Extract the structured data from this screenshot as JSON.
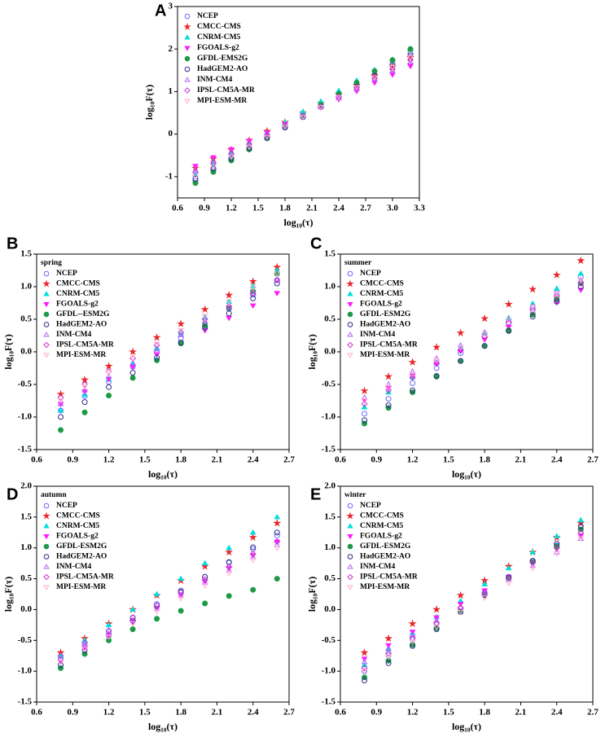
{
  "chart_data": [
    {
      "type": "scatter",
      "label": "A",
      "x_label": "log₁₀(τ)",
      "y_label": "log₁₀F(τ)",
      "x": [
        0.8,
        1.0,
        1.2,
        1.4,
        1.6,
        1.8,
        2.0,
        2.2,
        2.4,
        2.6,
        2.8,
        3.0,
        3.2
      ],
      "xlim": [
        0.6,
        3.3
      ],
      "xticks": [
        0.6,
        0.9,
        1.2,
        1.5,
        1.8,
        2.1,
        2.4,
        2.7,
        {
          "value": 3,
          "label": "3.0"
        },
        3.3
      ],
      "ylim": [
        -1.5,
        3
      ],
      "yticks": [
        -1,
        0,
        1,
        2,
        3
      ],
      "series": [
        {
          "name": "NCEP",
          "color": "#6b6bff",
          "marker": "circle-open",
          "values": [
            -1.1,
            -0.85,
            -0.6,
            -0.35,
            -0.1,
            0.15,
            0.4,
            0.65,
            0.9,
            1.15,
            1.4,
            1.65,
            1.9
          ]
        },
        {
          "name": "CMCC-CMS",
          "color": "#e8262a",
          "marker": "star",
          "values": [
            -0.8,
            -0.58,
            -0.37,
            -0.15,
            0.07,
            0.28,
            0.5,
            0.72,
            0.93,
            1.15,
            1.37,
            1.58,
            1.8
          ]
        },
        {
          "name": "CNRM-CM5",
          "color": "#00dede",
          "marker": "triangle",
          "values": [
            -0.95,
            -0.7,
            -0.46,
            -0.21,
            0.03,
            0.28,
            0.53,
            0.77,
            1.02,
            1.26,
            1.51,
            1.75,
            2.0
          ]
        },
        {
          "name": "FGOALS-g2",
          "color": "#ff1aff",
          "marker": "triangle-down",
          "values": [
            -0.75,
            -0.55,
            -0.36,
            -0.16,
            0.03,
            0.23,
            0.43,
            0.62,
            0.82,
            1.01,
            1.21,
            1.4,
            1.6
          ]
        },
        {
          "name": "GFDL-EMS2G",
          "color": "#1e9a46",
          "marker": "circle",
          "values": [
            -1.15,
            -0.89,
            -0.62,
            -0.36,
            -0.1,
            0.16,
            0.43,
            0.69,
            0.95,
            1.21,
            1.48,
            1.74,
            2.0
          ]
        },
        {
          "name": "HadGEM2-AO",
          "color": "#2c2c8c",
          "marker": "circle-open",
          "values": [
            -1.05,
            -0.81,
            -0.57,
            -0.33,
            -0.08,
            0.16,
            0.4,
            0.64,
            0.88,
            1.12,
            1.37,
            1.61,
            1.85
          ]
        },
        {
          "name": "INM-CM4",
          "color": "#b060ff",
          "marker": "triangle-open",
          "values": [
            -0.85,
            -0.64,
            -0.43,
            -0.21,
            0,
            0.21,
            0.43,
            0.64,
            0.85,
            1.06,
            1.28,
            1.49,
            1.7
          ]
        },
        {
          "name": "IPSL-CM5A-MR",
          "color": "#cc33cc",
          "marker": "diamond-open",
          "values": [
            -0.9,
            -0.68,
            -0.46,
            -0.24,
            -0.02,
            0.2,
            0.43,
            0.65,
            0.87,
            1.09,
            1.31,
            1.53,
            1.75
          ]
        },
        {
          "name": "MPI-ESM-MR",
          "color": "#ffadd0",
          "marker": "triangle-down-open",
          "values": [
            -1.0,
            -0.77,
            -0.53,
            -0.3,
            -0.07,
            0.17,
            0.4,
            0.63,
            0.87,
            1.1,
            1.33,
            1.57,
            1.8
          ]
        }
      ]
    },
    {
      "type": "scatter",
      "label": "B",
      "subtitle": "spring",
      "x_label": "log₁₀(τ)",
      "y_label": "log₁₀F(τ)",
      "x": [
        0.8,
        1.0,
        1.2,
        1.4,
        1.6,
        1.8,
        2.0,
        2.2,
        2.4,
        2.6
      ],
      "xlim": [
        0.6,
        2.7
      ],
      "xticks": [
        0.6,
        0.9,
        1.2,
        1.5,
        1.8,
        2.1,
        2.4,
        2.7
      ],
      "ylim": [
        -1.5,
        1.5
      ],
      "yticks": [
        -1.5,
        {
          "value": -1,
          "label": "-1.0"
        },
        -0.5,
        {
          "value": 0,
          "label": "0.0"
        },
        0.5,
        {
          "value": 1,
          "label": "1.0"
        },
        1.5
      ],
      "series": [
        {
          "name": "NCEP",
          "color": "#6b6bff",
          "marker": "circle-open",
          "values": [
            -0.9,
            -0.68,
            -0.46,
            -0.23,
            -0.01,
            0.21,
            0.43,
            0.66,
            0.88,
            1.1
          ]
        },
        {
          "name": "CMCC-CMS",
          "color": "#e8262a",
          "marker": "star",
          "values": [
            -0.65,
            -0.43,
            -0.22,
            0,
            0.22,
            0.43,
            0.65,
            0.87,
            1.08,
            1.3
          ]
        },
        {
          "name": "CNRM-CM5",
          "color": "#00dede",
          "marker": "triangle",
          "values": [
            -0.9,
            -0.66,
            -0.42,
            -0.18,
            0.06,
            0.29,
            0.53,
            0.77,
            1.01,
            1.25
          ]
        },
        {
          "name": "FGOALS-g2",
          "color": "#ff1aff",
          "marker": "triangle-down",
          "values": [
            -0.8,
            -0.61,
            -0.42,
            -0.23,
            -0.04,
            0.14,
            0.33,
            0.52,
            0.71,
            0.9
          ]
        },
        {
          "name": "GFDL--ESM2G",
          "color": "#1e9a46",
          "marker": "circle",
          "values": [
            -1.2,
            -0.93,
            -0.67,
            -0.4,
            -0.13,
            0.13,
            0.4,
            0.67,
            0.93,
            1.2
          ]
        },
        {
          "name": "HadGEM2-AO",
          "color": "#2c2c8c",
          "marker": "circle-open",
          "values": [
            -1.0,
            -0.77,
            -0.54,
            -0.32,
            -0.09,
            0.14,
            0.37,
            0.59,
            0.82,
            1.05
          ]
        },
        {
          "name": "INM-CM4",
          "color": "#b060ff",
          "marker": "triangle-open",
          "values": [
            -0.8,
            -0.59,
            -0.38,
            -0.17,
            0.04,
            0.26,
            0.47,
            0.68,
            0.89,
            1.1
          ]
        },
        {
          "name": "IPSL-CM5A-MR",
          "color": "#cc33cc",
          "marker": "diamond-open",
          "values": [
            -0.7,
            -0.5,
            -0.3,
            -0.1,
            0.1,
            0.3,
            0.5,
            0.7,
            0.9,
            1.1
          ]
        },
        {
          "name": "MPI-ESM-MR",
          "color": "#ffadd0",
          "marker": "triangle-down-open",
          "values": [
            -0.75,
            -0.53,
            -0.32,
            -0.1,
            0.12,
            0.33,
            0.55,
            0.77,
            0.98,
            1.2
          ]
        }
      ]
    },
    {
      "type": "scatter",
      "label": "C",
      "subtitle": "summer",
      "x_label": "log₁₀(τ)",
      "y_label": "log₁₀F(τ)",
      "x": [
        0.8,
        1.0,
        1.2,
        1.4,
        1.6,
        1.8,
        2.0,
        2.2,
        2.4,
        2.6
      ],
      "xlim": [
        0.6,
        2.7
      ],
      "xticks": [
        0.6,
        0.9,
        1.2,
        1.5,
        1.8,
        2.1,
        2.4,
        2.7
      ],
      "ylim": [
        -1.5,
        1.5
      ],
      "yticks": [
        -1.5,
        {
          "value": -1,
          "label": "-1.0"
        },
        -0.5,
        {
          "value": 0,
          "label": "0.0"
        },
        0.5,
        {
          "value": 1,
          "label": "1.0"
        },
        1.5
      ],
      "series": [
        {
          "name": "NCEP",
          "color": "#6b6bff",
          "marker": "circle-open",
          "values": [
            -0.95,
            -0.72,
            -0.48,
            -0.25,
            -0.02,
            0.22,
            0.45,
            0.68,
            0.92,
            1.15
          ]
        },
        {
          "name": "CMCC-CMS",
          "color": "#e8262a",
          "marker": "star",
          "values": [
            -0.6,
            -0.38,
            -0.16,
            0.07,
            0.29,
            0.51,
            0.73,
            0.96,
            1.18,
            1.4
          ]
        },
        {
          "name": "CNRM-CM5",
          "color": "#00dede",
          "marker": "triangle",
          "values": [
            -0.85,
            -0.62,
            -0.39,
            -0.17,
            0.06,
            0.29,
            0.52,
            0.74,
            0.97,
            1.2
          ]
        },
        {
          "name": "FGOALS-g2",
          "color": "#ff1aff",
          "marker": "triangle-down",
          "values": [
            -0.75,
            -0.56,
            -0.37,
            -0.18,
            0.01,
            0.19,
            0.38,
            0.57,
            0.76,
            0.95
          ]
        },
        {
          "name": "GFDL-ESM2G",
          "color": "#1e9a46",
          "marker": "circle",
          "values": [
            -1.1,
            -0.86,
            -0.62,
            -0.38,
            -0.14,
            0.09,
            0.33,
            0.57,
            0.81,
            1.05
          ]
        },
        {
          "name": "HadGEM2-AO",
          "color": "#2c2c8c",
          "marker": "circle-open",
          "values": [
            -1.05,
            -0.82,
            -0.59,
            -0.37,
            -0.14,
            0.09,
            0.32,
            0.54,
            0.77,
            1.0
          ]
        },
        {
          "name": "INM-CM4",
          "color": "#b060ff",
          "marker": "triangle-open",
          "values": [
            -0.7,
            -0.5,
            -0.3,
            -0.1,
            0.1,
            0.3,
            0.5,
            0.7,
            0.9,
            1.1
          ]
        },
        {
          "name": "IPSL-CM5A-MR",
          "color": "#cc33cc",
          "marker": "diamond-open",
          "values": [
            -0.8,
            -0.59,
            -0.39,
            -0.18,
            0.02,
            0.23,
            0.44,
            0.64,
            0.85,
            1.05
          ]
        },
        {
          "name": "MPI-ESM-MR",
          "color": "#ffadd0",
          "marker": "triangle-down-open",
          "values": [
            -0.75,
            -0.54,
            -0.34,
            -0.13,
            0.07,
            0.28,
            0.49,
            0.69,
            0.9,
            1.1
          ]
        }
      ]
    },
    {
      "type": "scatter",
      "label": "D",
      "subtitle": "autumn",
      "x_label": "log₁₀(τ)",
      "y_label": "log₁₀F(τ)",
      "x": [
        0.8,
        1.0,
        1.2,
        1.4,
        1.6,
        1.8,
        2.0,
        2.2,
        2.4,
        2.6
      ],
      "xlim": [
        0.6,
        2.7
      ],
      "xticks": [
        0.6,
        0.9,
        1.2,
        1.5,
        1.8,
        2.1,
        2.4,
        2.7
      ],
      "ylim": [
        -1.5,
        2
      ],
      "yticks": [
        -1.5,
        {
          "value": -1,
          "label": "-1.0"
        },
        -0.5,
        {
          "value": 0,
          "label": "0.0"
        },
        0.5,
        {
          "value": 1,
          "label": "1.0"
        },
        1.5,
        {
          "value": 2,
          "label": "2.0"
        }
      ],
      "series": [
        {
          "name": "NCEP",
          "color": "#6b6bff",
          "marker": "circle-open",
          "values": [
            -0.8,
            -0.58,
            -0.36,
            -0.13,
            0.09,
            0.31,
            0.53,
            0.76,
            0.98,
            1.2
          ]
        },
        {
          "name": "CMCC-CMS",
          "color": "#e8262a",
          "marker": "star",
          "values": [
            -0.7,
            -0.47,
            -0.23,
            0,
            0.23,
            0.47,
            0.7,
            0.93,
            1.17,
            1.4
          ]
        },
        {
          "name": "CNRM-CM5",
          "color": "#00dede",
          "marker": "triangle",
          "values": [
            -0.75,
            -0.5,
            -0.25,
            0,
            0.25,
            0.5,
            0.75,
            1.0,
            1.25,
            1.5
          ]
        },
        {
          "name": "FGOALS-g2",
          "color": "#ff1aff",
          "marker": "triangle-down",
          "values": [
            -0.85,
            -0.63,
            -0.42,
            -0.2,
            0.02,
            0.23,
            0.45,
            0.67,
            0.88,
            1.1
          ]
        },
        {
          "name": "GFDL-ESM2G",
          "color": "#1e9a46",
          "marker": "circle",
          "values": [
            -0.95,
            -0.72,
            -0.5,
            -0.32,
            -0.15,
            -0.02,
            0.1,
            0.22,
            0.32,
            0.5
          ]
        },
        {
          "name": "HadGEM2-AO",
          "color": "#2c2c8c",
          "marker": "circle-open",
          "values": [
            -0.9,
            -0.66,
            -0.42,
            -0.18,
            0.06,
            0.29,
            0.53,
            0.77,
            1.01,
            1.25
          ]
        },
        {
          "name": "INM-CM4",
          "color": "#b060ff",
          "marker": "triangle-open",
          "values": [
            -0.8,
            -0.59,
            -0.39,
            -0.18,
            0.02,
            0.23,
            0.44,
            0.64,
            0.85,
            1.05
          ]
        },
        {
          "name": "IPSL-CM5A-MR",
          "color": "#cc33cc",
          "marker": "diamond-open",
          "values": [
            -0.75,
            -0.54,
            -0.34,
            -0.13,
            0.07,
            0.28,
            0.49,
            0.69,
            0.9,
            1.1
          ]
        },
        {
          "name": "MPI-ESM-MR",
          "color": "#ffadd0",
          "marker": "triangle-down-open",
          "values": [
            -0.85,
            -0.64,
            -0.44,
            -0.23,
            -0.03,
            0.18,
            0.39,
            0.59,
            0.8,
            1.0
          ]
        }
      ]
    },
    {
      "type": "scatter",
      "label": "E",
      "subtitle": "winter",
      "x_label": "log₁₀(τ)",
      "y_label": "log₁₀F(τ)",
      "x": [
        0.8,
        1.0,
        1.2,
        1.4,
        1.6,
        1.8,
        2.0,
        2.2,
        2.4,
        2.6
      ],
      "xlim": [
        0.6,
        2.7
      ],
      "xticks": [
        0.6,
        0.9,
        1.2,
        1.5,
        1.8,
        2.1,
        2.4,
        2.7
      ],
      "ylim": [
        -1.5,
        2
      ],
      "yticks": [
        -1.5,
        {
          "value": -1,
          "label": "-1.0"
        },
        -0.5,
        {
          "value": 0,
          "label": "0.0"
        },
        0.5,
        {
          "value": 1,
          "label": "1.0"
        },
        1.5,
        {
          "value": 2,
          "label": "2.0"
        }
      ],
      "series": [
        {
          "name": "NCEP",
          "color": "#6b6bff",
          "marker": "circle-open",
          "values": [
            -1.0,
            -0.74,
            -0.49,
            -0.23,
            0.02,
            0.28,
            0.53,
            0.79,
            1.04,
            1.3
          ]
        },
        {
          "name": "CMCC-CMS",
          "color": "#e8262a",
          "marker": "star",
          "values": [
            -0.7,
            -0.47,
            -0.23,
            0,
            0.23,
            0.47,
            0.7,
            0.93,
            1.17,
            1.4
          ]
        },
        {
          "name": "CNRM-CM5",
          "color": "#00dede",
          "marker": "triangle",
          "values": [
            -0.9,
            -0.64,
            -0.38,
            -0.12,
            0.14,
            0.41,
            0.67,
            0.93,
            1.19,
            1.45
          ]
        },
        {
          "name": "FGOALS-g2",
          "color": "#ff1aff",
          "marker": "triangle-down",
          "values": [
            -0.8,
            -0.58,
            -0.36,
            -0.13,
            0.09,
            0.31,
            0.53,
            0.76,
            0.98,
            1.2
          ]
        },
        {
          "name": "GFDL-ESM2G",
          "color": "#1e9a46",
          "marker": "circle",
          "values": [
            -1.1,
            -0.83,
            -0.57,
            -0.3,
            -0.03,
            0.23,
            0.5,
            0.77,
            1.03,
            1.3
          ]
        },
        {
          "name": "HadGEM2-AO",
          "color": "#2c2c8c",
          "marker": "circle-open",
          "values": [
            -1.15,
            -0.87,
            -0.59,
            -0.32,
            -0.04,
            0.24,
            0.52,
            0.79,
            1.07,
            1.35
          ]
        },
        {
          "name": "INM-CM4",
          "color": "#b060ff",
          "marker": "triangle-open",
          "values": [
            -0.85,
            -0.63,
            -0.41,
            -0.18,
            0.04,
            0.26,
            0.48,
            0.71,
            0.93,
            1.15
          ]
        },
        {
          "name": "IPSL-CM5A-MR",
          "color": "#cc33cc",
          "marker": "diamond-open",
          "values": [
            -0.95,
            -0.71,
            -0.46,
            -0.22,
            0.03,
            0.27,
            0.51,
            0.76,
            1.0,
            1.25
          ]
        },
        {
          "name": "MPI-ESM-MR",
          "color": "#ffadd0",
          "marker": "triangle-down-open",
          "values": [
            -1.0,
            -0.76,
            -0.52,
            -0.28,
            -0.04,
            0.19,
            0.43,
            0.67,
            0.91,
            1.15
          ]
        }
      ]
    }
  ]
}
